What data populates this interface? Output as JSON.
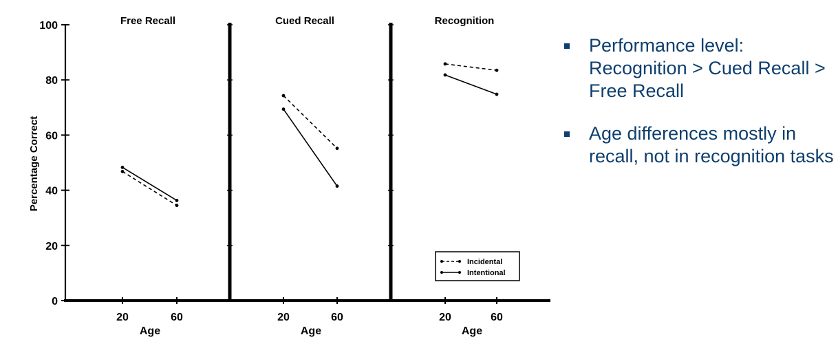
{
  "chart_data": {
    "type": "line",
    "ylabel": "Percentage Correct",
    "ylim": [
      0,
      100
    ],
    "yticks": [
      "0",
      "20",
      "40",
      "60",
      "80",
      "100"
    ],
    "xlabel": "Age",
    "legend": {
      "placement": "bottom-right",
      "entries": [
        {
          "name": "Incidental",
          "style": "dashed"
        },
        {
          "name": "Intentional",
          "style": "solid"
        }
      ]
    },
    "panels": [
      {
        "title": "Free Recall",
        "categories": [
          "20",
          "60"
        ],
        "series": [
          {
            "name": "Incidental",
            "values": [
              46.8,
              34.5
            ]
          },
          {
            "name": "Intentional",
            "values": [
              48.3,
              36.3
            ]
          }
        ]
      },
      {
        "title": "Cued Recall",
        "categories": [
          "20",
          "60"
        ],
        "series": [
          {
            "name": "Incidental",
            "values": [
              74.3,
              55.2
            ]
          },
          {
            "name": "Intentional",
            "values": [
              69.4,
              41.5
            ]
          }
        ]
      },
      {
        "title": "Recognition",
        "categories": [
          "20",
          "60"
        ],
        "series": [
          {
            "name": "Incidental",
            "values": [
              85.8,
              83.5
            ]
          },
          {
            "name": "Intentional",
            "values": [
              81.8,
              74.8
            ]
          }
        ]
      }
    ]
  },
  "bullets": [
    {
      "text": "Performance level: Recognition > Cued Recall > Free Recall"
    },
    {
      "text": "Age differences mostly in recall, not in recognition tasks"
    }
  ],
  "colors": {
    "axis": "#000000",
    "bullet_text": "#0e3f6e"
  }
}
